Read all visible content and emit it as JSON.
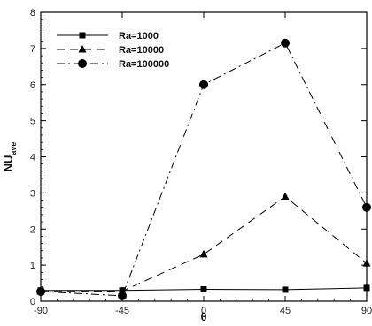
{
  "chart_data": {
    "type": "line",
    "x": [
      -90,
      -45,
      0,
      45,
      90
    ],
    "x_ticks": [
      "-90",
      "-45",
      "0",
      "45",
      "90"
    ],
    "y_ticks": [
      "0",
      "1",
      "2",
      "3",
      "4",
      "5",
      "6",
      "7",
      "8"
    ],
    "xlabel": "θ",
    "ylabel": "NU",
    "ylabel_sub": "ave",
    "xlim": [
      -90,
      90
    ],
    "ylim": [
      0,
      8
    ],
    "grid": false,
    "legend_position": "top-left",
    "series": [
      {
        "name": "Ra=1000",
        "values": [
          0.3,
          0.3,
          0.33,
          0.32,
          0.37
        ],
        "line": "solid",
        "marker": "square",
        "color": "#000000"
      },
      {
        "name": "Ra=10000",
        "values": [
          0.27,
          0.28,
          1.3,
          2.9,
          1.05
        ],
        "line": "dashed",
        "marker": "triangle",
        "color": "#000000"
      },
      {
        "name": "Ra=100000",
        "values": [
          0.27,
          0.15,
          6.0,
          7.15,
          2.6
        ],
        "line": "dashdot",
        "marker": "circle",
        "color": "#000000"
      }
    ]
  }
}
